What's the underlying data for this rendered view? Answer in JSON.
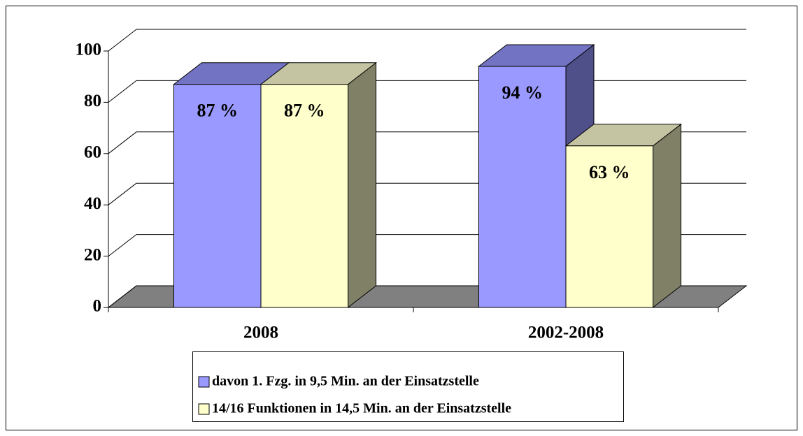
{
  "chart_data": {
    "type": "bar3d",
    "categories": [
      "2008",
      "2002-2008"
    ],
    "series": [
      {
        "name": "davon 1. Fzg. in 9,5 Min. an der Einsatzstelle",
        "color": "#9999ff",
        "top": "#7373c4",
        "side": "#4f4f8a",
        "values": [
          87,
          94
        ],
        "value_labels": [
          "87 %",
          "94 %"
        ]
      },
      {
        "name": "14/16 Funktionen in 14,5 Min. an der Einsatzstelle",
        "color": "#ffffcc",
        "top": "#c4c4a3",
        "side": "#808066",
        "values": [
          87,
          63
        ],
        "value_labels": [
          "87 %",
          "63 %"
        ]
      }
    ],
    "ylim": [
      0,
      100
    ],
    "yticks": [
      0,
      20,
      40,
      60,
      80,
      100
    ],
    "grid": true
  }
}
